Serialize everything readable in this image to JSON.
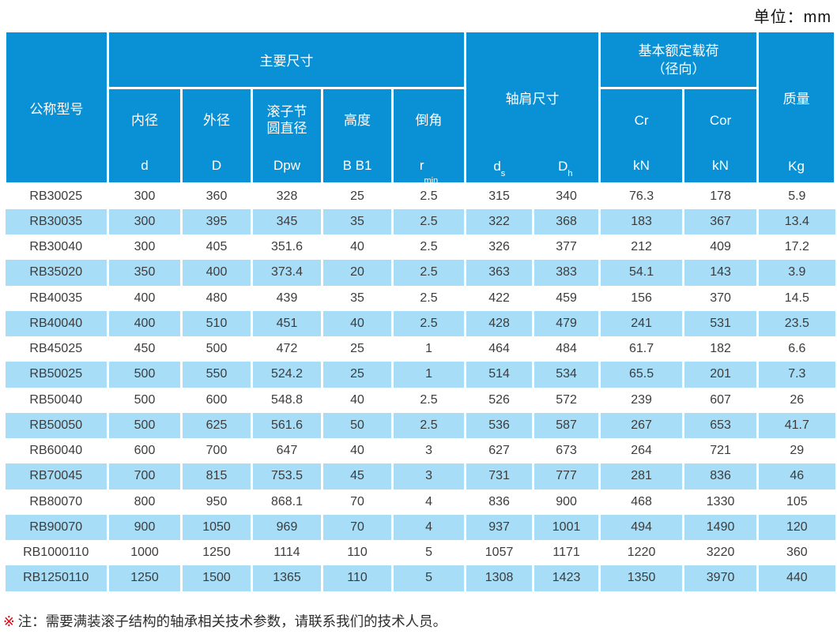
{
  "unit_label": "单位：mm",
  "colors": {
    "header_bg": "#0a90d4",
    "stripe_bg": "#a7ddf7",
    "data_text": "#3c3c3c",
    "note_red": "#e60012"
  },
  "header": {
    "model": "公称型号",
    "main_dims": "主要尺寸",
    "shoulder": "轴肩尺寸",
    "load_line1": "基本额定载荷",
    "load_line2": "（径向）",
    "mass": "质量",
    "mass_unit": "Kg",
    "sub_columns": [
      {
        "line1": "内径",
        "line2": "",
        "sym": "d",
        "sub": ""
      },
      {
        "line1": "外径",
        "line2": "",
        "sym": "D",
        "sub": ""
      },
      {
        "line1": "滚子节",
        "line2": "圆直径",
        "sym": "Dpw",
        "sub": ""
      },
      {
        "line1": "高度",
        "line2": "",
        "sym": "B B1",
        "sub": ""
      },
      {
        "line1": "倒角",
        "line2": "",
        "sym": "r",
        "sub": "min"
      }
    ],
    "shoulder_syms": [
      {
        "sym": "d",
        "sub": "s"
      },
      {
        "sym": "D",
        "sub": "h"
      }
    ],
    "load_cols": [
      {
        "sym": "Cr",
        "unit": "kN"
      },
      {
        "sym": "Cor",
        "unit": "kN"
      }
    ]
  },
  "table": {
    "rows": [
      [
        "RB30025",
        "300",
        "360",
        "328",
        "25",
        "2.5",
        "315",
        "340",
        "76.3",
        "178",
        "5.9"
      ],
      [
        "RB30035",
        "300",
        "395",
        "345",
        "35",
        "2.5",
        "322",
        "368",
        "183",
        "367",
        "13.4"
      ],
      [
        "RB30040",
        "300",
        "405",
        "351.6",
        "40",
        "2.5",
        "326",
        "377",
        "212",
        "409",
        "17.2"
      ],
      [
        "RB35020",
        "350",
        "400",
        "373.4",
        "20",
        "2.5",
        "363",
        "383",
        "54.1",
        "143",
        "3.9"
      ],
      [
        "RB40035",
        "400",
        "480",
        "439",
        "35",
        "2.5",
        "422",
        "459",
        "156",
        "370",
        "14.5"
      ],
      [
        "RB40040",
        "400",
        "510",
        "451",
        "40",
        "2.5",
        "428",
        "479",
        "241",
        "531",
        "23.5"
      ],
      [
        "RB45025",
        "450",
        "500",
        "472",
        "25",
        "1",
        "464",
        "484",
        "61.7",
        "182",
        "6.6"
      ],
      [
        "RB50025",
        "500",
        "550",
        "524.2",
        "25",
        "1",
        "514",
        "534",
        "65.5",
        "201",
        "7.3"
      ],
      [
        "RB50040",
        "500",
        "600",
        "548.8",
        "40",
        "2.5",
        "526",
        "572",
        "239",
        "607",
        "26"
      ],
      [
        "RB50050",
        "500",
        "625",
        "561.6",
        "50",
        "2.5",
        "536",
        "587",
        "267",
        "653",
        "41.7"
      ],
      [
        "RB60040",
        "600",
        "700",
        "647",
        "40",
        "3",
        "627",
        "673",
        "264",
        "721",
        "29"
      ],
      [
        "RB70045",
        "700",
        "815",
        "753.5",
        "45",
        "3",
        "731",
        "777",
        "281",
        "836",
        "46"
      ],
      [
        "RB80070",
        "800",
        "950",
        "868.1",
        "70",
        "4",
        "836",
        "900",
        "468",
        "1330",
        "105"
      ],
      [
        "RB90070",
        "900",
        "1050",
        "969",
        "70",
        "4",
        "937",
        "1001",
        "494",
        "1490",
        "120"
      ],
      [
        "RB1000110",
        "1000",
        "1250",
        "1114",
        "110",
        "5",
        "1057",
        "1171",
        "1220",
        "3220",
        "360"
      ],
      [
        "RB1250110",
        "1250",
        "1500",
        "1365",
        "110",
        "5",
        "1308",
        "1423",
        "1350",
        "3970",
        "440"
      ]
    ]
  },
  "footnote": {
    "marker": "※",
    "text": "注：需要满装滚子结构的轴承相关技术参数，请联系我们的技术人员。"
  }
}
